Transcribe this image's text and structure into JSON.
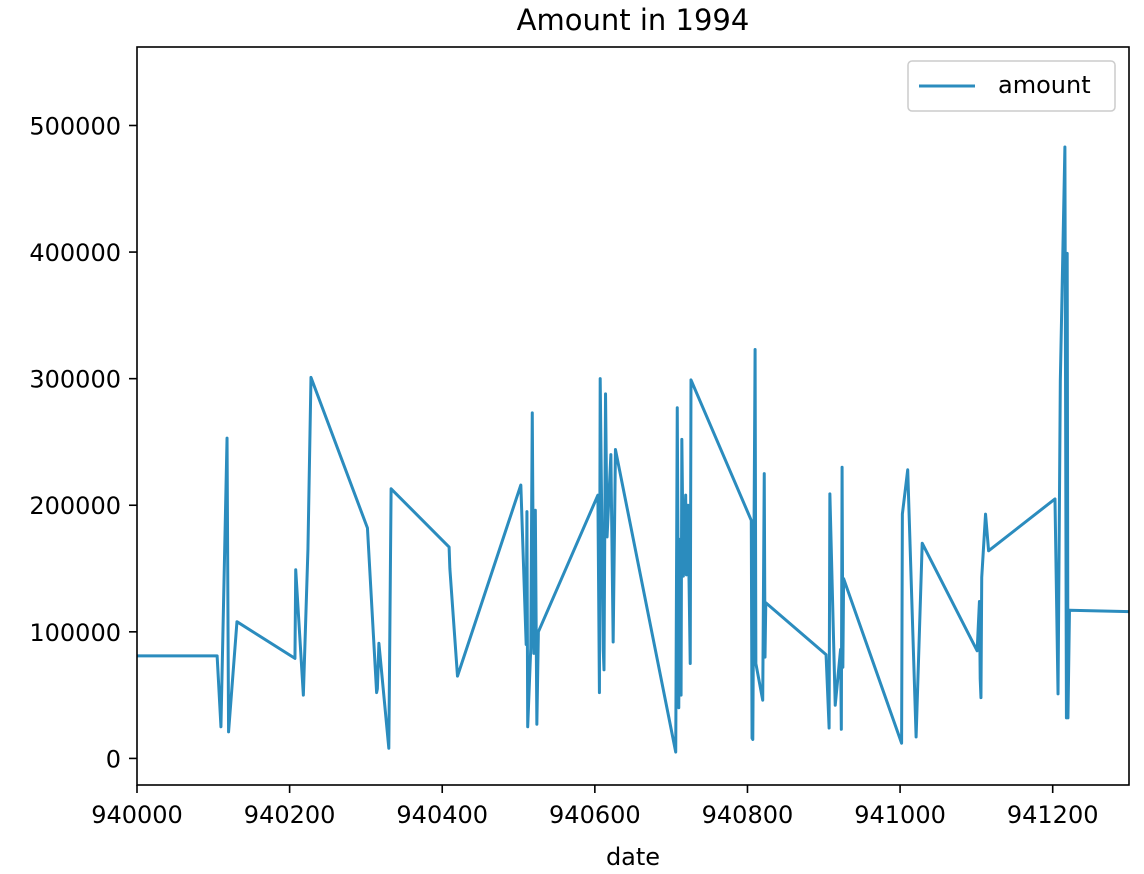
{
  "chart_data": {
    "type": "line",
    "title": "Amount in 1994",
    "xlabel": "date",
    "ylabel": "",
    "xlim": [
      940000,
      941300
    ],
    "ylim": [
      -21000,
      562000
    ],
    "xticks": [
      940000,
      940200,
      940400,
      940600,
      940800,
      941000,
      941200
    ],
    "yticks": [
      0,
      100000,
      200000,
      300000,
      400000,
      500000
    ],
    "legend_position": "top-right",
    "grid": false,
    "series": [
      {
        "name": "amount",
        "color": "#2b8cbe",
        "points": [
          [
            940000,
            81000
          ],
          [
            940105,
            81000
          ],
          [
            940110,
            25000
          ],
          [
            940118,
            253000
          ],
          [
            940120,
            21000
          ],
          [
            940131,
            108000
          ],
          [
            940207,
            79000
          ],
          [
            940208,
            149000
          ],
          [
            940218,
            50000
          ],
          [
            940224,
            165000
          ],
          [
            940228,
            301000
          ],
          [
            940302,
            182000
          ],
          [
            940314,
            52000
          ],
          [
            940315,
            55000
          ],
          [
            940317,
            91000
          ],
          [
            940330,
            8000
          ],
          [
            940333,
            213000
          ],
          [
            940409,
            167000
          ],
          [
            940410,
            150000
          ],
          [
            940420,
            65000
          ],
          [
            940503,
            216000
          ],
          [
            940510,
            90000
          ],
          [
            940511,
            195000
          ],
          [
            940512,
            25000
          ],
          [
            940516,
            87000
          ],
          [
            940518,
            273000
          ],
          [
            940520,
            83000
          ],
          [
            940522,
            196000
          ],
          [
            940524,
            27000
          ],
          [
            940526,
            100000
          ],
          [
            940604,
            208000
          ],
          [
            940606,
            52000
          ],
          [
            940607,
            300000
          ],
          [
            940611,
            86000
          ],
          [
            940612,
            70000
          ],
          [
            940614,
            288000
          ],
          [
            940616,
            175000
          ],
          [
            940621,
            240000
          ],
          [
            940624,
            92000
          ],
          [
            940627,
            244000
          ],
          [
            940706,
            5000
          ],
          [
            940708,
            277000
          ],
          [
            940710,
            40000
          ],
          [
            940711,
            173000
          ],
          [
            940713,
            50000
          ],
          [
            940714,
            252000
          ],
          [
            940716,
            144000
          ],
          [
            940719,
            208000
          ],
          [
            940720,
            145000
          ],
          [
            940722,
            200000
          ],
          [
            940725,
            75000
          ],
          [
            940726,
            299000
          ],
          [
            940805,
            188000
          ],
          [
            940806,
            16000
          ],
          [
            940807,
            15000
          ],
          [
            940810,
            323000
          ],
          [
            940811,
            75000
          ],
          [
            940820,
            46000
          ],
          [
            940822,
            225000
          ],
          [
            940823,
            80000
          ],
          [
            940824,
            123000
          ],
          [
            940903,
            82000
          ],
          [
            940907,
            24000
          ],
          [
            940908,
            209000
          ],
          [
            940915,
            42000
          ],
          [
            940922,
            86000
          ],
          [
            940923,
            23000
          ],
          [
            940924,
            230000
          ],
          [
            940925,
            72000
          ],
          [
            940926,
            142000
          ],
          [
            941002,
            12000
          ],
          [
            941003,
            193000
          ],
          [
            941010,
            228000
          ],
          [
            941021,
            17000
          ],
          [
            941029,
            170000
          ],
          [
            941101,
            85000
          ],
          [
            941104,
            124000
          ],
          [
            941105,
            63000
          ],
          [
            941106,
            48000
          ],
          [
            941107,
            143000
          ],
          [
            941112,
            193000
          ],
          [
            941116,
            164000
          ],
          [
            941203,
            205000
          ],
          [
            941207,
            51000
          ],
          [
            941210,
            298000
          ],
          [
            941216,
            483000
          ],
          [
            941218,
            32000
          ],
          [
            941219,
            399000
          ],
          [
            941220,
            32000
          ],
          [
            941222,
            117000
          ],
          [
            941300,
            116000
          ]
        ]
      }
    ]
  }
}
